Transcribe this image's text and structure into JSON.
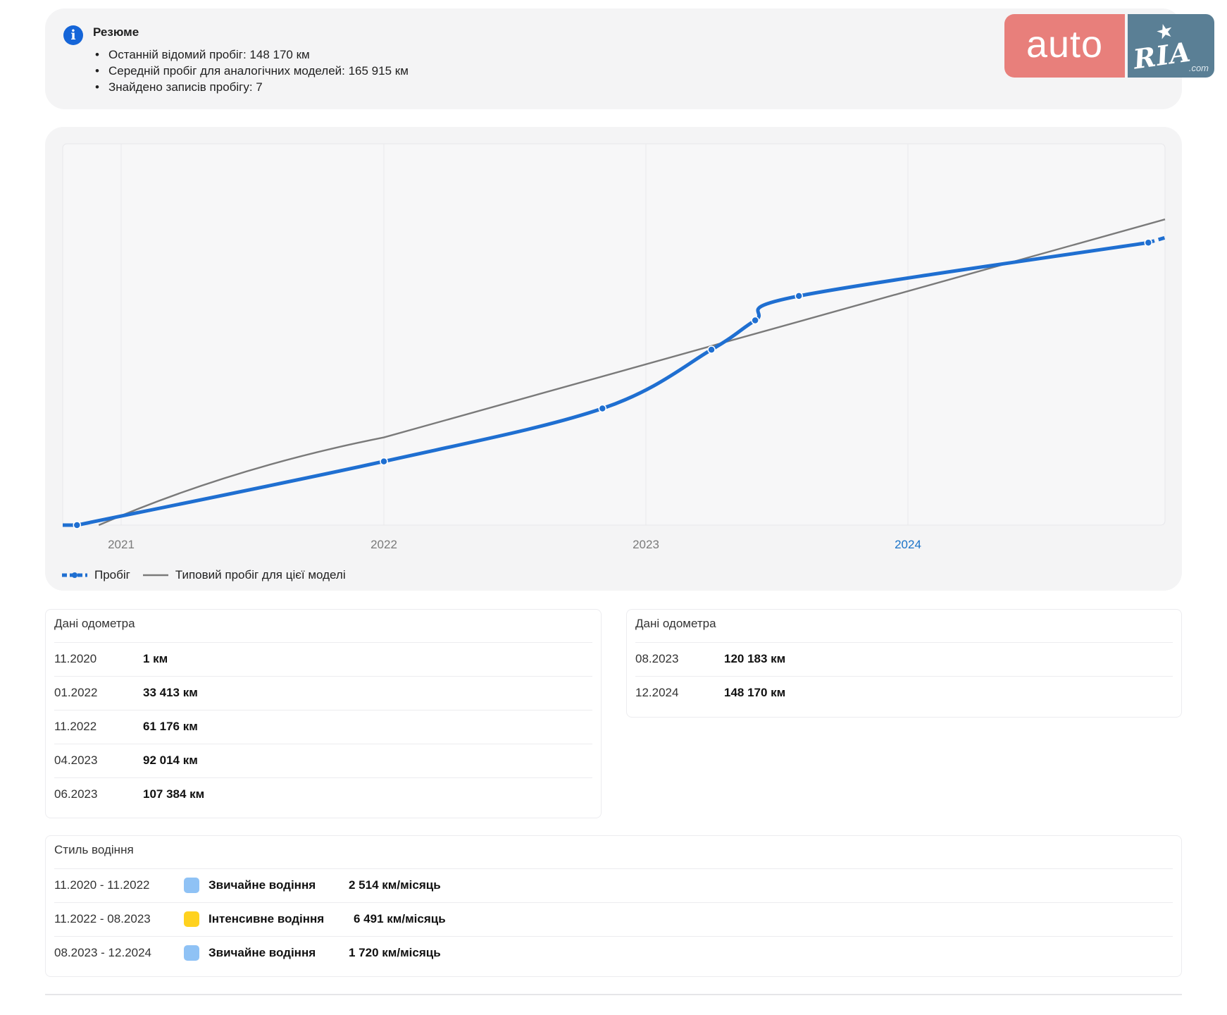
{
  "summary": {
    "title": "Резюме",
    "items": [
      "Останній відомий пробіг: 148 170 км",
      "Середній пробіг для аналогічних моделей: 165 915 км",
      "Знайдено записів пробігу: 7"
    ]
  },
  "logo": {
    "left": "auto",
    "right": "RIA",
    "suffix": ".com"
  },
  "chart_data": {
    "type": "line",
    "x_ticks": [
      "2021",
      "2022",
      "2023",
      "2024"
    ],
    "highlighted_tick": "2024",
    "grid": true,
    "legend_position": "bottom-left",
    "series": [
      {
        "name": "Пробіг",
        "color": "#1f6fd1",
        "style": "thick line with dot markers",
        "points": [
          {
            "x": "11.2020",
            "y": 1
          },
          {
            "x": "01.2022",
            "y": 33413
          },
          {
            "x": "11.2022",
            "y": 61176
          },
          {
            "x": "04.2023",
            "y": 92014
          },
          {
            "x": "06.2023",
            "y": 107384
          },
          {
            "x": "08.2023",
            "y": 120183
          },
          {
            "x": "12.2024",
            "y": 148170
          }
        ]
      },
      {
        "name": "Типовий пробіг для цієї моделі",
        "color": "#7a7a7a",
        "style": "thin line"
      }
    ]
  },
  "odometer_left": {
    "title": "Дані одометра",
    "rows": [
      {
        "date": "11.2020",
        "value": "1 км"
      },
      {
        "date": "01.2022",
        "value": "33 413 км"
      },
      {
        "date": "11.2022",
        "value": "61 176 км"
      },
      {
        "date": "04.2023",
        "value": "92 014 км"
      },
      {
        "date": "06.2023",
        "value": "107 384 км"
      }
    ]
  },
  "odometer_right": {
    "title": "Дані одометра",
    "rows": [
      {
        "date": "08.2023",
        "value": "120 183 км"
      },
      {
        "date": "12.2024",
        "value": "148 170 км"
      }
    ]
  },
  "driving_style": {
    "title": "Стиль водіння",
    "rows": [
      {
        "period": "11.2020 - 11.2022",
        "color": "#8fc2f5",
        "label": "Звичайне водіння",
        "rate": "2 514 км/місяць"
      },
      {
        "period": "11.2022 - 08.2023",
        "color": "#ffd21f",
        "label": "Інтенсивне водіння",
        "rate": "6 491 км/місяць"
      },
      {
        "period": "08.2023 - 12.2024",
        "color": "#8fc2f5",
        "label": "Звичайне водіння",
        "rate": "1 720 км/місяць"
      }
    ]
  }
}
